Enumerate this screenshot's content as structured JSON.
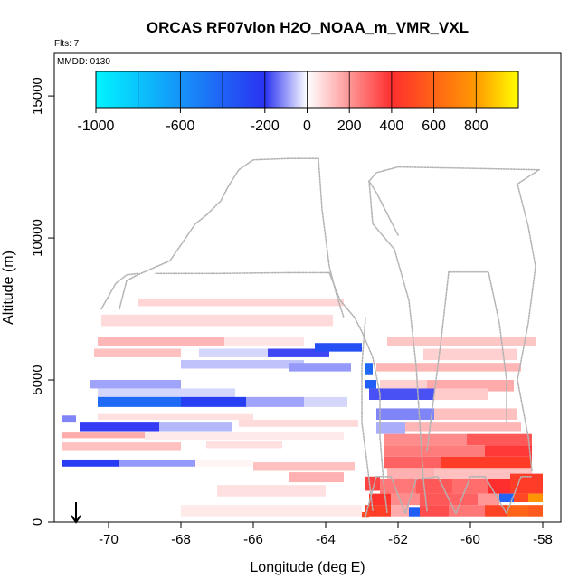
{
  "chart_data": {
    "type": "heatmap",
    "title": "ORCAS RF07vlon H2O_NOAA_m_VMR_VXL",
    "flights_note": "Flts: 7",
    "date_note": "MMDD: 0130",
    "xlabel": "Longitude (deg E)",
    "ylabel": "Altitude (m)",
    "xlim": [
      -71.5,
      -57.5
    ],
    "ylim": [
      0,
      16500
    ],
    "x_ticks": [
      -70,
      -68,
      -66,
      -64,
      -62,
      -60,
      -58
    ],
    "y_ticks": [
      0,
      5000,
      10000,
      15000
    ],
    "colorbar": {
      "range": [
        -1000,
        1000
      ],
      "ticks": [
        -1000,
        -600,
        -200,
        0,
        200,
        400,
        600,
        800
      ],
      "boundaries": [
        -800,
        -600,
        -400,
        -200,
        0,
        200,
        400,
        600,
        800
      ],
      "colors": {
        "cyan": "#00F5FF",
        "blue": "#2A32F2",
        "white": "#FFFFFF",
        "red": "#FF2E2E",
        "orange": "#FF9A00",
        "yellow": "#FFFF00"
      }
    },
    "arrow_marker": {
      "lon": -70.9,
      "alt_from": 700,
      "alt_to": 0
    },
    "cells": [
      {
        "lon": [
          -69.2,
          -63.5
        ],
        "alt": [
          7600,
          7850
        ],
        "value": 80
      },
      {
        "lon": [
          -70.2,
          -63.8
        ],
        "alt": [
          6900,
          7300
        ],
        "value": 70
      },
      {
        "lon": [
          -70.3,
          -66.8
        ],
        "alt": [
          6200,
          6500
        ],
        "value": 140
      },
      {
        "lon": [
          -66.8,
          -64.6
        ],
        "alt": [
          6200,
          6500
        ],
        "value": 50
      },
      {
        "lon": [
          -70.4,
          -68.0
        ],
        "alt": [
          5800,
          6100
        ],
        "value": 120
      },
      {
        "lon": [
          -67.5,
          -65.6
        ],
        "alt": [
          5800,
          6100
        ],
        "value": -40
      },
      {
        "lon": [
          -65.6,
          -63.9
        ],
        "alt": [
          5800,
          6100
        ],
        "value": -180
      },
      {
        "lon": [
          -64.3,
          -63.0
        ],
        "alt": [
          6000,
          6300
        ],
        "value": -320
      },
      {
        "lon": [
          -68.0,
          -64.6
        ],
        "alt": [
          5400,
          5700
        ],
        "value": -60
      },
      {
        "lon": [
          -65.0,
          -63.3
        ],
        "alt": [
          5300,
          5600
        ],
        "value": -100
      },
      {
        "lon": [
          -70.5,
          -68.0
        ],
        "alt": [
          4700,
          5000
        ],
        "value": -90
      },
      {
        "lon": [
          -70.3,
          -66.5
        ],
        "alt": [
          4300,
          4700
        ],
        "value": -40
      },
      {
        "lon": [
          -70.3,
          -68.0
        ],
        "alt": [
          4050,
          4400
        ],
        "value": -430
      },
      {
        "lon": [
          -68.0,
          -66.2
        ],
        "alt": [
          4050,
          4400
        ],
        "value": -250
      },
      {
        "lon": [
          -66.2,
          -64.6
        ],
        "alt": [
          4050,
          4400
        ],
        "value": -90
      },
      {
        "lon": [
          -64.6,
          -63.4
        ],
        "alt": [
          4050,
          4400
        ],
        "value": -40
      },
      {
        "lon": [
          -71.3,
          -70.9
        ],
        "alt": [
          3500,
          3750
        ],
        "value": -120
      },
      {
        "lon": [
          -70.3,
          -66.0
        ],
        "alt": [
          3600,
          3800
        ],
        "value": 60
      },
      {
        "lon": [
          -70.8,
          -68.6
        ],
        "alt": [
          3200,
          3500
        ],
        "value": -190
      },
      {
        "lon": [
          -68.6,
          -66.6
        ],
        "alt": [
          3200,
          3500
        ],
        "value": -70
      },
      {
        "lon": [
          -66.4,
          -63.1
        ],
        "alt": [
          3350,
          3600
        ],
        "value": 70
      },
      {
        "lon": [
          -71.3,
          -69.0
        ],
        "alt": [
          2950,
          3150
        ],
        "value": 160
      },
      {
        "lon": [
          -69.0,
          -63.5
        ],
        "alt": [
          2900,
          3150
        ],
        "value": 40
      },
      {
        "lon": [
          -71.3,
          -68.0
        ],
        "alt": [
          2500,
          2800
        ],
        "value": 120
      },
      {
        "lon": [
          -67.3,
          -65.2
        ],
        "alt": [
          2600,
          2850
        ],
        "value": 60
      },
      {
        "lon": [
          -71.3,
          -69.7
        ],
        "alt": [
          1950,
          2200
        ],
        "value": -240
      },
      {
        "lon": [
          -69.7,
          -67.6
        ],
        "alt": [
          1950,
          2200
        ],
        "value": -100
      },
      {
        "lon": [
          -67.6,
          -66.0
        ],
        "alt": [
          1950,
          2200
        ],
        "value": 20
      },
      {
        "lon": [
          -66.0,
          -63.2
        ],
        "alt": [
          1800,
          2100
        ],
        "value": 120
      },
      {
        "lon": [
          -65.0,
          -63.5
        ],
        "alt": [
          1400,
          1750
        ],
        "value": 150
      },
      {
        "lon": [
          -67.0,
          -64.0
        ],
        "alt": [
          900,
          1300
        ],
        "value": 60
      },
      {
        "lon": [
          -68.0,
          -63.0
        ],
        "alt": [
          200,
          600
        ],
        "value": 40
      },
      {
        "lon": [
          -62.3,
          -58.2
        ],
        "alt": [
          6200,
          6500
        ],
        "value": 110
      },
      {
        "lon": [
          -61.3,
          -58.7
        ],
        "alt": [
          5700,
          6100
        ],
        "value": 90
      },
      {
        "lon": [
          -62.6,
          -58.6
        ],
        "alt": [
          5300,
          5600
        ],
        "value": 140
      },
      {
        "lon": [
          -62.9,
          -62.7
        ],
        "alt": [
          5200,
          5600
        ],
        "value": -420
      },
      {
        "lon": [
          -62.5,
          -61.2
        ],
        "alt": [
          4600,
          5000
        ],
        "value": 90
      },
      {
        "lon": [
          -61.2,
          -58.8
        ],
        "alt": [
          4600,
          5000
        ],
        "value": 160
      },
      {
        "lon": [
          -62.9,
          -62.6
        ],
        "alt": [
          4700,
          5000
        ],
        "value": -380
      },
      {
        "lon": [
          -62.8,
          -61.0
        ],
        "alt": [
          4300,
          4700
        ],
        "value": -170
      },
      {
        "lon": [
          -61.0,
          -59.5
        ],
        "alt": [
          4300,
          4700
        ],
        "value": 100
      },
      {
        "lon": [
          -62.6,
          -61.0
        ],
        "alt": [
          3600,
          4000
        ],
        "value": -120
      },
      {
        "lon": [
          -61.0,
          -58.7
        ],
        "alt": [
          3600,
          4000
        ],
        "value": 120
      },
      {
        "lon": [
          -62.6,
          -61.8
        ],
        "alt": [
          3100,
          3500
        ],
        "value": -80
      },
      {
        "lon": [
          -61.8,
          -58.6
        ],
        "alt": [
          3200,
          3500
        ],
        "value": 140
      },
      {
        "lon": [
          -62.4,
          -60.1
        ],
        "alt": [
          2700,
          3100
        ],
        "value": 220
      },
      {
        "lon": [
          -60.1,
          -58.3
        ],
        "alt": [
          2700,
          3100
        ],
        "value": 320
      },
      {
        "lon": [
          -62.4,
          -59.6
        ],
        "alt": [
          2300,
          2700
        ],
        "value": 250
      },
      {
        "lon": [
          -59.6,
          -58.3
        ],
        "alt": [
          2300,
          2700
        ],
        "value": 380
      },
      {
        "lon": [
          -62.4,
          -60.8
        ],
        "alt": [
          1900,
          2300
        ],
        "value": 300
      },
      {
        "lon": [
          -60.8,
          -58.3
        ],
        "alt": [
          1900,
          2300
        ],
        "value": 450
      },
      {
        "lon": [
          -62.3,
          -61.0
        ],
        "alt": [
          1500,
          1900
        ],
        "value": 150
      },
      {
        "lon": [
          -61.0,
          -58.3
        ],
        "alt": [
          1500,
          1900
        ],
        "value": 120
      },
      {
        "lon": [
          -62.9,
          -62.5
        ],
        "alt": [
          1100,
          1600
        ],
        "value": 360
      },
      {
        "lon": [
          -62.5,
          -61.5
        ],
        "alt": [
          1000,
          1500
        ],
        "value": 260
      },
      {
        "lon": [
          -61.5,
          -60.5
        ],
        "alt": [
          1000,
          1500
        ],
        "value": 320
      },
      {
        "lon": [
          -60.5,
          -59.5
        ],
        "alt": [
          1000,
          1500
        ],
        "value": 280
      },
      {
        "lon": [
          -59.5,
          -58.9
        ],
        "alt": [
          1000,
          1500
        ],
        "value": 400
      },
      {
        "lon": [
          -58.9,
          -58.0
        ],
        "alt": [
          1000,
          1700
        ],
        "value": 450
      },
      {
        "lon": [
          -62.8,
          -62.2
        ],
        "alt": [
          600,
          1000
        ],
        "value": 420
      },
      {
        "lon": [
          -62.2,
          -61.4
        ],
        "alt": [
          600,
          1000
        ],
        "value": 220
      },
      {
        "lon": [
          -61.4,
          -60.6
        ],
        "alt": [
          600,
          1000
        ],
        "value": 320
      },
      {
        "lon": [
          -60.6,
          -59.8
        ],
        "alt": [
          600,
          1000
        ],
        "value": 300
      },
      {
        "lon": [
          -59.8,
          -59.2
        ],
        "alt": [
          600,
          1000
        ],
        "value": 200
      },
      {
        "lon": [
          -59.2,
          -58.8
        ],
        "alt": [
          700,
          1000
        ],
        "value": -400
      },
      {
        "lon": [
          -58.8,
          -58.4
        ],
        "alt": [
          700,
          1000
        ],
        "value": 500
      },
      {
        "lon": [
          -58.4,
          -58.0
        ],
        "alt": [
          700,
          1000
        ],
        "value": 780
      },
      {
        "lon": [
          -62.9,
          -62.2
        ],
        "alt": [
          200,
          600
        ],
        "value": 460
      },
      {
        "lon": [
          -62.2,
          -61.7
        ],
        "alt": [
          200,
          600
        ],
        "value": 160
      },
      {
        "lon": [
          -61.7,
          -61.4
        ],
        "alt": [
          200,
          500
        ],
        "value": -380
      },
      {
        "lon": [
          -61.4,
          -60.6
        ],
        "alt": [
          200,
          600
        ],
        "value": 340
      },
      {
        "lon": [
          -60.6,
          -59.6
        ],
        "alt": [
          200,
          600
        ],
        "value": 260
      },
      {
        "lon": [
          -59.6,
          -59.0
        ],
        "alt": [
          200,
          600
        ],
        "value": 480
      },
      {
        "lon": [
          -59.0,
          -58.4
        ],
        "alt": [
          200,
          600
        ],
        "value": 600
      },
      {
        "lon": [
          -58.4,
          -58.0
        ],
        "alt": [
          200,
          600
        ],
        "value": 560
      },
      {
        "lon": [
          -63.0,
          -62.8
        ],
        "alt": [
          150,
          350
        ],
        "value": 500
      }
    ],
    "flight_track": [
      [
        [
          -70.2,
          7500
        ],
        [
          -69.8,
          8400
        ],
        [
          -69.5,
          8700
        ],
        [
          -69.2,
          8750
        ]
      ],
      [
        [
          -69.7,
          7500
        ],
        [
          -69.5,
          8500
        ],
        [
          -69.2,
          8700
        ],
        [
          -68.3,
          9200
        ],
        [
          -67.6,
          10500
        ],
        [
          -67.3,
          10800
        ],
        [
          -66.9,
          11300
        ],
        [
          -66.7,
          11800
        ],
        [
          -66.4,
          12400
        ],
        [
          -66.0,
          12750
        ],
        [
          -65.0,
          12800
        ],
        [
          -64.2,
          12800
        ]
      ],
      [
        [
          -68.7,
          8750
        ],
        [
          -67.0,
          8750
        ],
        [
          -65.0,
          8780
        ],
        [
          -63.9,
          8780
        ]
      ],
      [
        [
          -64.2,
          12800
        ],
        [
          -64.1,
          11000
        ],
        [
          -63.9,
          9000
        ],
        [
          -63.7,
          8000
        ],
        [
          -63.5,
          7200
        ]
      ],
      [
        [
          -63.9,
          8780
        ],
        [
          -63.6,
          7800
        ],
        [
          -63.2,
          7200
        ],
        [
          -63.0,
          6700
        ],
        [
          -62.7,
          5800
        ],
        [
          -62.5,
          4500
        ],
        [
          -62.5,
          3000
        ],
        [
          -62.4,
          1400
        ],
        [
          -62.3,
          300
        ]
      ],
      [
        [
          -62.9,
          7200
        ],
        [
          -63.0,
          5500
        ],
        [
          -63.0,
          3500
        ],
        [
          -62.8,
          1500
        ],
        [
          -62.7,
          400
        ]
      ],
      [
        [
          -62.0,
          10100
        ],
        [
          -62.6,
          11600
        ],
        [
          -62.8,
          12000
        ],
        [
          -62.6,
          12300
        ],
        [
          -62.0,
          12500
        ],
        [
          -60.0,
          12450
        ],
        [
          -58.1,
          12400
        ]
      ],
      [
        [
          -62.8,
          12000
        ],
        [
          -62.7,
          10500
        ],
        [
          -62.1,
          9600
        ],
        [
          -61.7,
          7800
        ],
        [
          -61.5,
          5500
        ],
        [
          -61.4,
          3500
        ],
        [
          -61.3,
          1500
        ],
        [
          -61.2,
          400
        ]
      ],
      [
        [
          -58.1,
          12400
        ],
        [
          -58.7,
          11900
        ],
        [
          -58.4,
          10400
        ],
        [
          -58.2,
          9000
        ],
        [
          -58.4,
          7000
        ],
        [
          -58.7,
          5000
        ],
        [
          -58.4,
          3000
        ],
        [
          -58.3,
          1800
        ]
      ],
      [
        [
          -60.6,
          8800
        ],
        [
          -59.5,
          8800
        ],
        [
          -59.2,
          7000
        ],
        [
          -59.0,
          5000
        ],
        [
          -59.0,
          3500
        ]
      ],
      [
        [
          -60.6,
          8800
        ],
        [
          -60.8,
          6500
        ],
        [
          -61.0,
          4500
        ],
        [
          -61.2,
          2500
        ]
      ],
      [
        [
          -62.9,
          200
        ],
        [
          -62.6,
          1600
        ],
        [
          -62.2,
          1600
        ],
        [
          -61.8,
          300
        ],
        [
          -61.5,
          1500
        ],
        [
          -60.9,
          1600
        ],
        [
          -60.4,
          300
        ],
        [
          -60.0,
          1600
        ],
        [
          -59.6,
          1600
        ],
        [
          -59.0,
          300
        ],
        [
          -58.6,
          1600
        ],
        [
          -58.3,
          1600
        ]
      ]
    ]
  }
}
